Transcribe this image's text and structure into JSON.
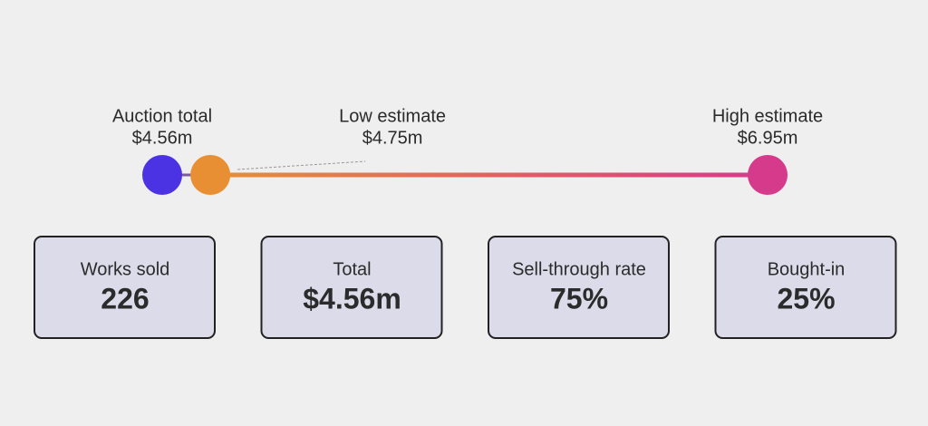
{
  "dot_plot": {
    "type": "dot",
    "points": [
      {
        "label": "Auction total",
        "value": 4.56,
        "value_label": "$4.56m",
        "color": "#4b33e3"
      },
      {
        "label": "Low estimate",
        "value": 4.75,
        "value_label": "$4.75m",
        "color": "#e88f33"
      },
      {
        "label": "High estimate",
        "value": 6.95,
        "value_label": "$6.95m",
        "color": "#d53a8b"
      }
    ]
  },
  "cards": [
    {
      "label": "Works sold",
      "value": "226"
    },
    {
      "label": "Total",
      "value": "$4.56m"
    },
    {
      "label": "Sell-through rate",
      "value": "75%"
    },
    {
      "label": "Bought-in",
      "value": "25%"
    }
  ]
}
